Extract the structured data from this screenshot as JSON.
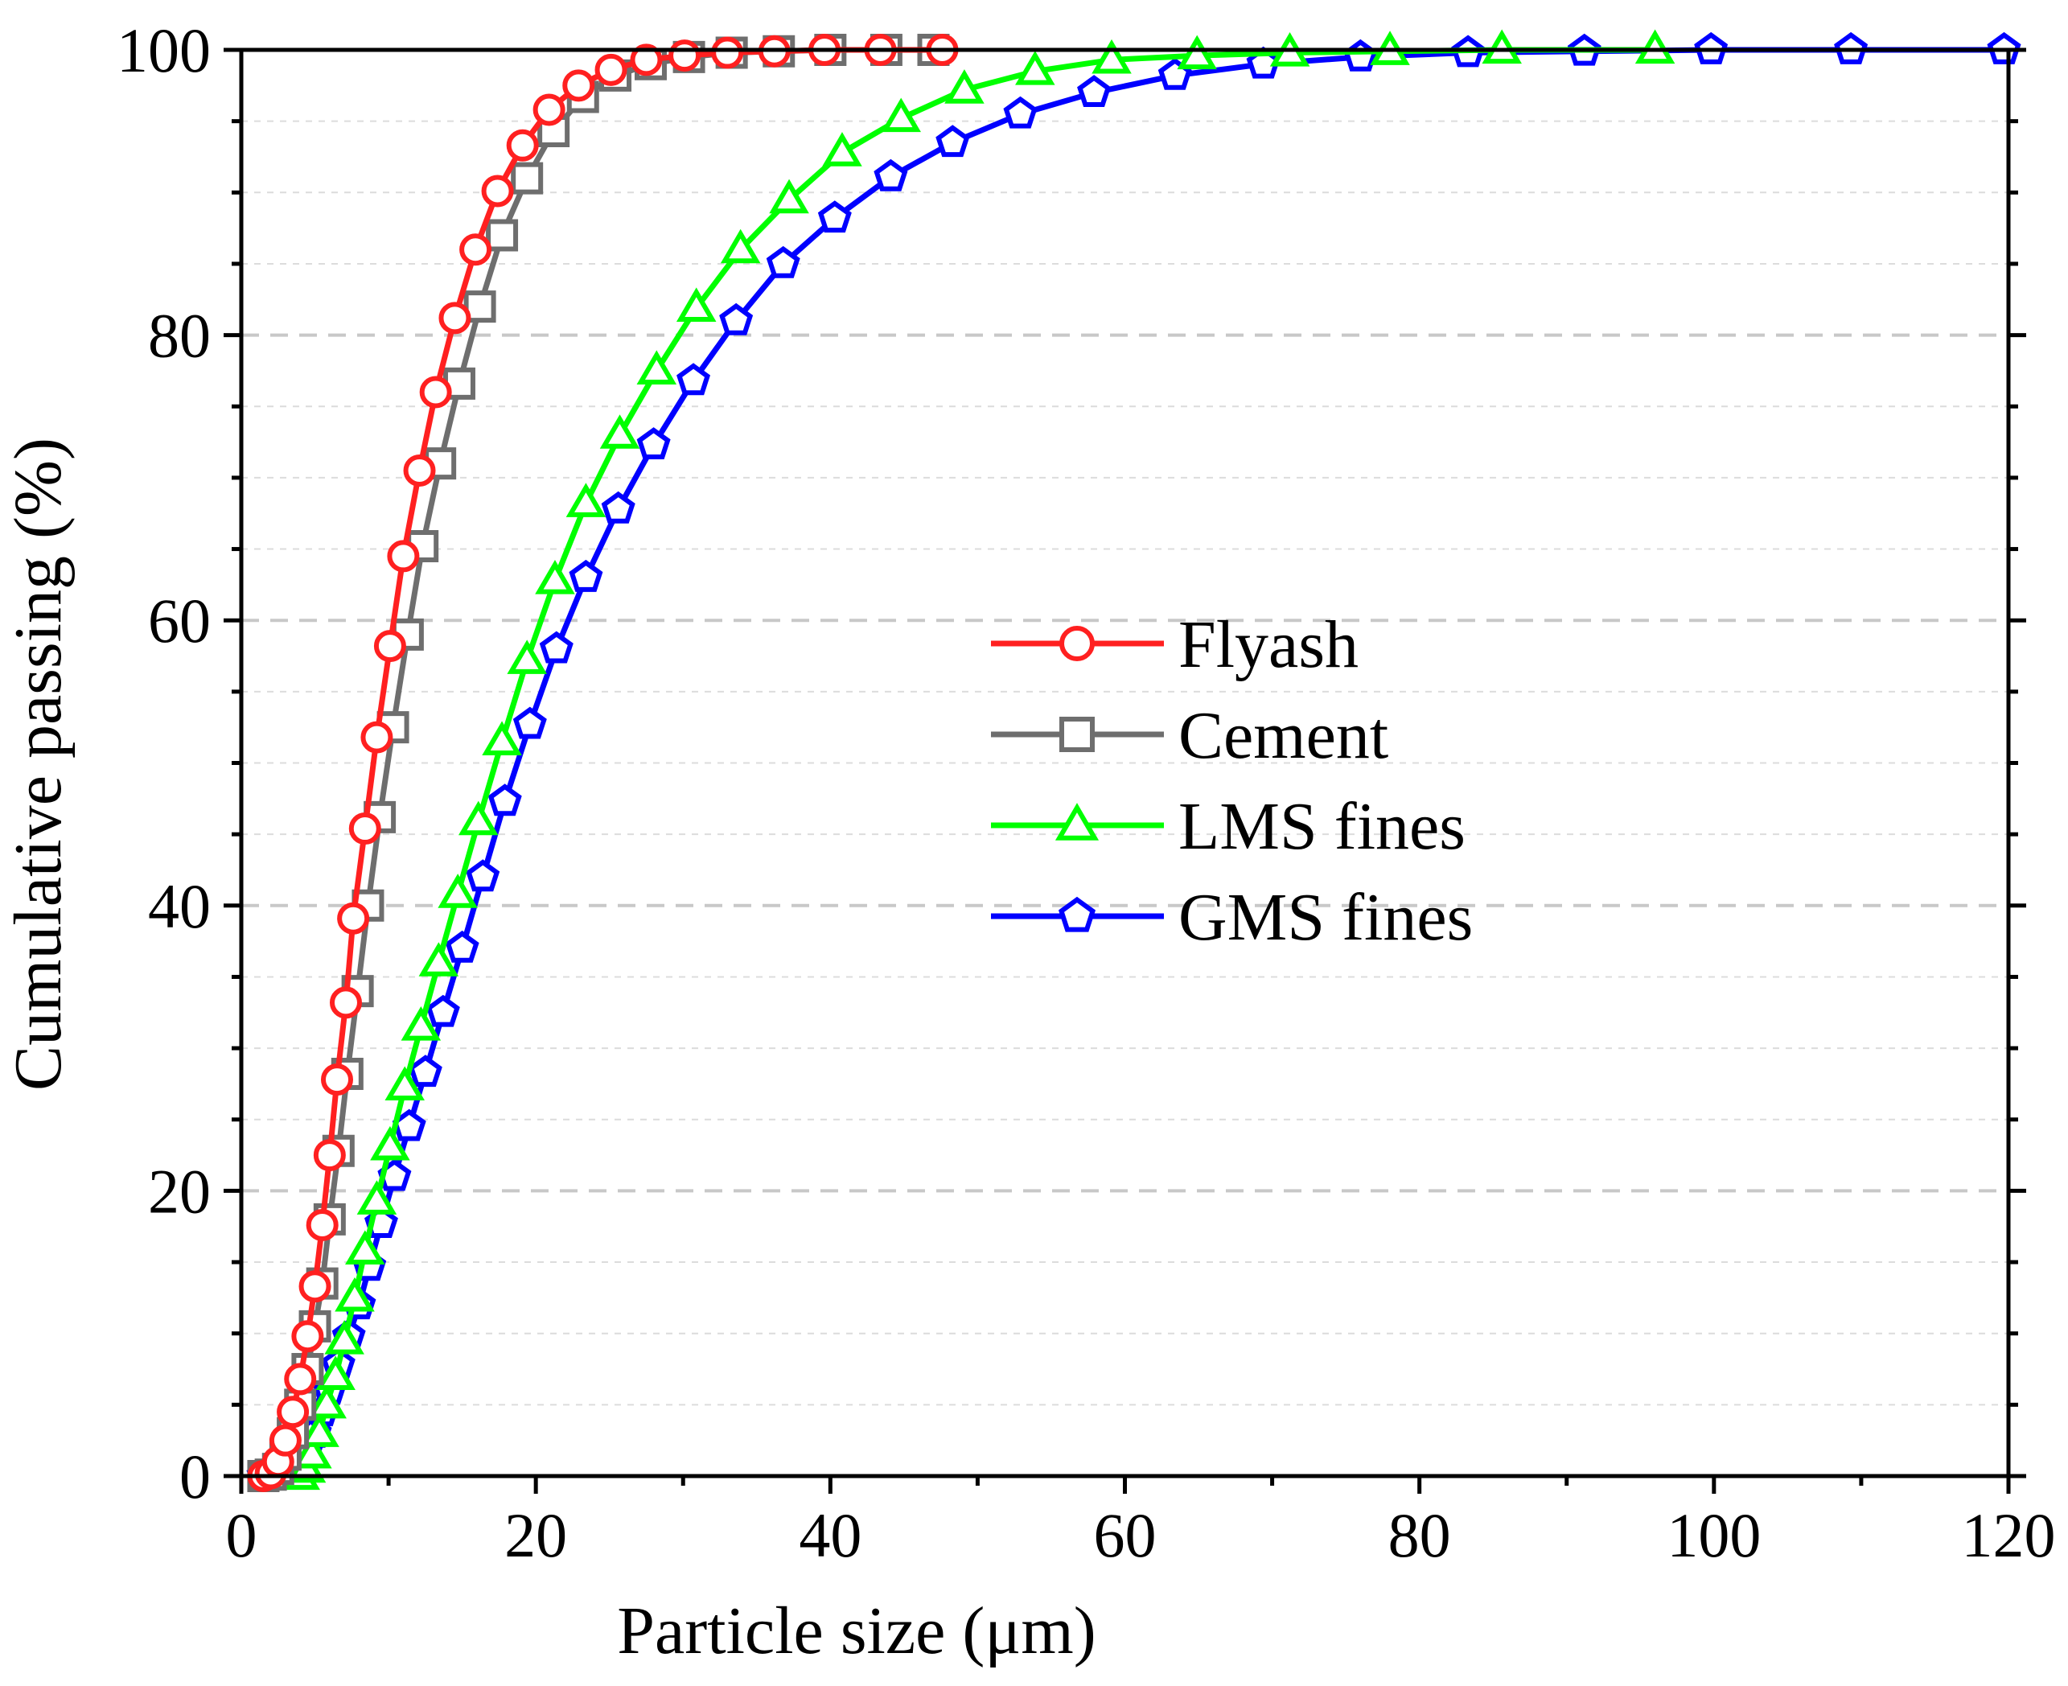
{
  "chart_data": {
    "type": "line",
    "title": "",
    "xlabel": "Particle size (μm)",
    "ylabel": "Cumulative passing (%)",
    "xlim": [
      0,
      120
    ],
    "ylim": [
      0,
      100
    ],
    "x_ticks": [
      0,
      20,
      40,
      60,
      80,
      100,
      120
    ],
    "y_ticks": [
      0,
      20,
      40,
      60,
      80,
      100
    ],
    "x_tick_labels": [
      "0",
      "20",
      "40",
      "60",
      "80",
      "100",
      "120"
    ],
    "y_tick_labels": [
      "0",
      "20",
      "40",
      "60",
      "80",
      "100"
    ],
    "grid": "horizontal dashed",
    "legend_position": "center-right",
    "series": [
      {
        "name": "Flyash",
        "color": "#FF2020",
        "marker": "circle",
        "x": [
          1.5,
          2.0,
          2.5,
          3.0,
          3.5,
          4.0,
          4.5,
          5.0,
          5.5,
          6.0,
          6.5,
          7.1,
          7.6,
          8.4,
          9.2,
          10.1,
          11.0,
          12.1,
          13.2,
          14.5,
          15.9,
          17.4,
          19.1,
          20.9,
          22.9,
          25.1,
          27.5,
          30.1,
          33.0,
          36.2,
          39.6,
          43.4,
          47.6
        ],
        "values": [
          0,
          0.2,
          1.0,
          2.5,
          4.5,
          6.8,
          9.8,
          13.3,
          17.6,
          22.5,
          27.8,
          33.2,
          39.1,
          45.4,
          51.8,
          58.2,
          64.5,
          70.5,
          76.0,
          81.2,
          86.0,
          90.1,
          93.3,
          95.8,
          97.5,
          98.6,
          99.3,
          99.6,
          99.8,
          99.9,
          100,
          100,
          100
        ]
      },
      {
        "name": "Cement",
        "color": "#6E6E6E",
        "marker": "square",
        "x": [
          1.5,
          2.0,
          2.5,
          3.0,
          3.5,
          4.0,
          4.5,
          5.0,
          5.5,
          6.0,
          6.6,
          7.2,
          7.9,
          8.6,
          9.4,
          10.3,
          11.3,
          12.3,
          13.5,
          14.8,
          16.2,
          17.7,
          19.4,
          21.2,
          23.2,
          25.4,
          27.8,
          30.4,
          33.3,
          36.5,
          40.0,
          43.8,
          47.0
        ],
        "values": [
          0,
          0.1,
          0.5,
          1.5,
          3.0,
          5.0,
          7.5,
          10.5,
          13.5,
          18.0,
          22.8,
          28.2,
          34.0,
          40.0,
          46.2,
          52.5,
          59.0,
          65.2,
          71.0,
          76.6,
          82.0,
          87.0,
          91.0,
          94.3,
          96.7,
          98.2,
          99.0,
          99.5,
          99.8,
          99.9,
          100,
          100,
          100
        ]
      },
      {
        "name": "LMS fines",
        "color": "#00FF00",
        "marker": "triangle",
        "x": [
          4.0,
          4.4,
          4.8,
          5.3,
          5.8,
          6.4,
          7.0,
          7.7,
          8.4,
          9.2,
          10.1,
          11.1,
          12.2,
          13.4,
          14.7,
          16.1,
          17.7,
          19.4,
          21.3,
          23.4,
          25.7,
          28.2,
          30.9,
          33.9,
          37.2,
          40.8,
          44.8,
          49.1,
          53.9,
          59.1,
          64.9,
          71.2,
          78.0,
          85.6,
          96.0
        ],
        "values": [
          0,
          0.5,
          1.5,
          3.0,
          5.0,
          7.0,
          9.5,
          12.5,
          15.8,
          19.3,
          23.1,
          27.3,
          31.5,
          36.0,
          40.8,
          45.9,
          51.5,
          57.2,
          62.8,
          68.2,
          73.0,
          77.5,
          81.9,
          86.0,
          89.5,
          92.8,
          95.2,
          97.2,
          98.5,
          99.3,
          99.6,
          99.8,
          99.9,
          100,
          100
        ]
      },
      {
        "name": "GMS fines",
        "color": "#0000FF",
        "marker": "pentagon",
        "x": [
          1.5,
          2.0,
          2.5,
          3.0,
          3.5,
          4.0,
          4.5,
          5.0,
          5.5,
          6.0,
          6.6,
          7.3,
          8.0,
          8.7,
          9.5,
          10.4,
          11.4,
          12.5,
          13.7,
          15.0,
          16.4,
          17.9,
          19.6,
          21.4,
          23.4,
          25.6,
          28.0,
          30.7,
          33.6,
          36.8,
          40.3,
          44.1,
          48.3,
          52.9,
          57.9,
          63.4,
          69.4,
          76.0,
          83.3,
          91.2,
          99.8,
          109.3,
          119.7
        ],
        "values": [
          0,
          0.1,
          0.3,
          0.5,
          0.8,
          1.2,
          2.0,
          3.0,
          4.5,
          6.0,
          7.8,
          9.8,
          12.0,
          14.7,
          17.7,
          21.0,
          24.5,
          28.3,
          32.5,
          37.0,
          42.0,
          47.3,
          52.7,
          58.0,
          63.0,
          67.8,
          72.3,
          76.8,
          81.0,
          85.0,
          88.2,
          91.1,
          93.5,
          95.5,
          97.0,
          98.2,
          99.0,
          99.5,
          99.8,
          99.9,
          100,
          100,
          100
        ]
      }
    ]
  }
}
